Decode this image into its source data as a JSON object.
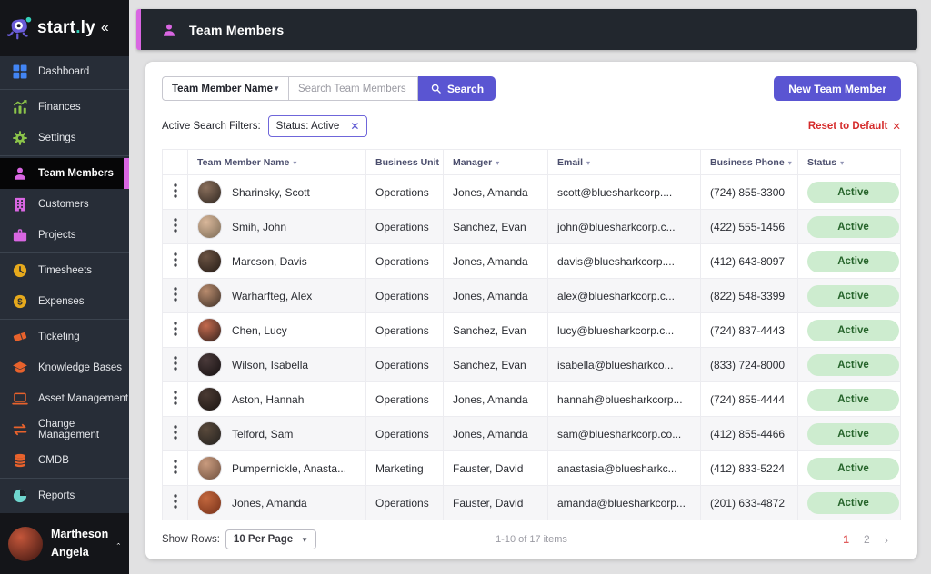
{
  "app": {
    "logo_start": "start",
    "logo_dot": ".",
    "logo_ly": "ly",
    "collapse": "«"
  },
  "sidebar": {
    "items": [
      {
        "label": "Dashboard",
        "icon": "dashboard-icon",
        "color": "#4285f4",
        "section": 0,
        "active": false
      },
      {
        "label": "Finances",
        "icon": "finances-icon",
        "color": "#8bc34a",
        "section": 1,
        "active": false
      },
      {
        "label": "Settings",
        "icon": "settings-icon",
        "color": "#8bc34a",
        "section": 1,
        "active": false
      },
      {
        "label": "Team Members",
        "icon": "team-members-icon",
        "color": "#d966e2",
        "section": 2,
        "active": true
      },
      {
        "label": "Customers",
        "icon": "customers-icon",
        "color": "#d966e2",
        "section": 2,
        "active": false
      },
      {
        "label": "Projects",
        "icon": "projects-icon",
        "color": "#d966e2",
        "section": 2,
        "active": false
      },
      {
        "label": "Timesheets",
        "icon": "timesheets-icon",
        "color": "#e6a91c",
        "section": 3,
        "active": false
      },
      {
        "label": "Expenses",
        "icon": "expenses-icon",
        "color": "#e6a91c",
        "section": 3,
        "active": false
      },
      {
        "label": "Ticketing",
        "icon": "ticketing-icon",
        "color": "#e8622c",
        "section": 4,
        "active": false
      },
      {
        "label": "Knowledge Bases",
        "icon": "knowledge-bases-icon",
        "color": "#e8622c",
        "section": 4,
        "active": false
      },
      {
        "label": "Asset Management",
        "icon": "asset-management-icon",
        "color": "#e8622c",
        "section": 4,
        "active": false
      },
      {
        "label": "Change Management",
        "icon": "change-management-icon",
        "color": "#e8622c",
        "section": 4,
        "active": false
      },
      {
        "label": "CMDB",
        "icon": "cmdb-icon",
        "color": "#e8622c",
        "section": 4,
        "active": false
      },
      {
        "label": "Reports",
        "icon": "reports-icon",
        "color": "#6fd6ce",
        "section": 5,
        "active": false
      }
    ],
    "user": {
      "first_line": "Martheson",
      "second_line": "Angela"
    }
  },
  "header": {
    "title": "Team Members"
  },
  "toolbar": {
    "field_selector": "Team Member Name",
    "search_placeholder": "Search Team Members",
    "search_label": "Search",
    "new_button": "New Team Member"
  },
  "filters": {
    "label": "Active Search Filters:",
    "chips": [
      {
        "text": "Status: Active"
      }
    ],
    "reset_label": "Reset to Default"
  },
  "table": {
    "columns": [
      "Team Member Name",
      "Business Unit",
      "Manager",
      "Email",
      "Business Phone",
      "Status"
    ],
    "rows": [
      {
        "name": "Sharinsky, Scott",
        "unit": "Operations",
        "manager": "Jones, Amanda",
        "email": "scott@bluesharkcorp....",
        "phone": "(724) 855-3300",
        "status": "Active",
        "avatar_colors": [
          "#8a6f5c",
          "#2e2620"
        ]
      },
      {
        "name": "Smih, John",
        "unit": "Operations",
        "manager": "Sanchez, Evan",
        "email": "john@bluesharkcorp.c...",
        "phone": "(422) 555-1456",
        "status": "Active",
        "avatar_colors": [
          "#d9b79a",
          "#7a6a55"
        ]
      },
      {
        "name": "Marcson, Davis",
        "unit": "Operations",
        "manager": "Jones, Amanda",
        "email": "davis@bluesharkcorp....",
        "phone": "(412) 643-8097",
        "status": "Active",
        "avatar_colors": [
          "#6b5343",
          "#241b15"
        ]
      },
      {
        "name": "Warharfteg, Alex",
        "unit": "Operations",
        "manager": "Jones, Amanda",
        "email": "alex@bluesharkcorp.c...",
        "phone": "(822) 548-3399",
        "status": "Active",
        "avatar_colors": [
          "#b98c6e",
          "#3d2f26"
        ]
      },
      {
        "name": "Chen, Lucy",
        "unit": "Operations",
        "manager": "Sanchez, Evan",
        "email": "lucy@bluesharkcorp.c...",
        "phone": "(724) 837-4443",
        "status": "Active",
        "avatar_colors": [
          "#c46a4e",
          "#31211c"
        ]
      },
      {
        "name": "Wilson, Isabella",
        "unit": "Operations",
        "manager": "Sanchez, Evan",
        "email": "isabella@bluesharkco...",
        "phone": "(833) 724-8000",
        "status": "Active",
        "avatar_colors": [
          "#4a3a3a",
          "#151011"
        ]
      },
      {
        "name": "Aston, Hannah",
        "unit": "Operations",
        "manager": "Jones, Amanda",
        "email": "hannah@bluesharkcorp...",
        "phone": "(724) 855-4444",
        "status": "Active",
        "avatar_colors": [
          "#4a3a33",
          "#1b1512"
        ]
      },
      {
        "name": "Telford, Sam",
        "unit": "Operations",
        "manager": "Jones, Amanda",
        "email": "sam@bluesharkcorp.co...",
        "phone": "(412) 855-4466",
        "status": "Active",
        "avatar_colors": [
          "#5a4a3c",
          "#22201e"
        ]
      },
      {
        "name": "Pumpernickle, Anasta...",
        "unit": "Marketing",
        "manager": "Fauster, David",
        "email": "anastasia@bluesharkc...",
        "phone": "(412) 833-5224",
        "status": "Active",
        "avatar_colors": [
          "#c99b7e",
          "#6e4f3d"
        ]
      },
      {
        "name": "Jones, Amanda",
        "unit": "Operations",
        "manager": "Fauster, David",
        "email": "amanda@bluesharkcorp...",
        "phone": "(201) 633-4872",
        "status": "Active",
        "avatar_colors": [
          "#c4683e",
          "#742f18"
        ]
      }
    ]
  },
  "footer": {
    "show_rows_label": "Show Rows:",
    "page_size": "10 Per Page",
    "range_text": "1-10 of 17 items",
    "pages": [
      "1",
      "2"
    ],
    "current_page": "1",
    "next": "›"
  },
  "colors": {
    "accent_magenta": "#d966e2",
    "accent_purple": "#5a55d2",
    "status_badge_bg": "#cdeccf",
    "status_badge_text": "#26642b",
    "reset_red": "#d52b2b",
    "current_page_red": "#e05c5c"
  }
}
